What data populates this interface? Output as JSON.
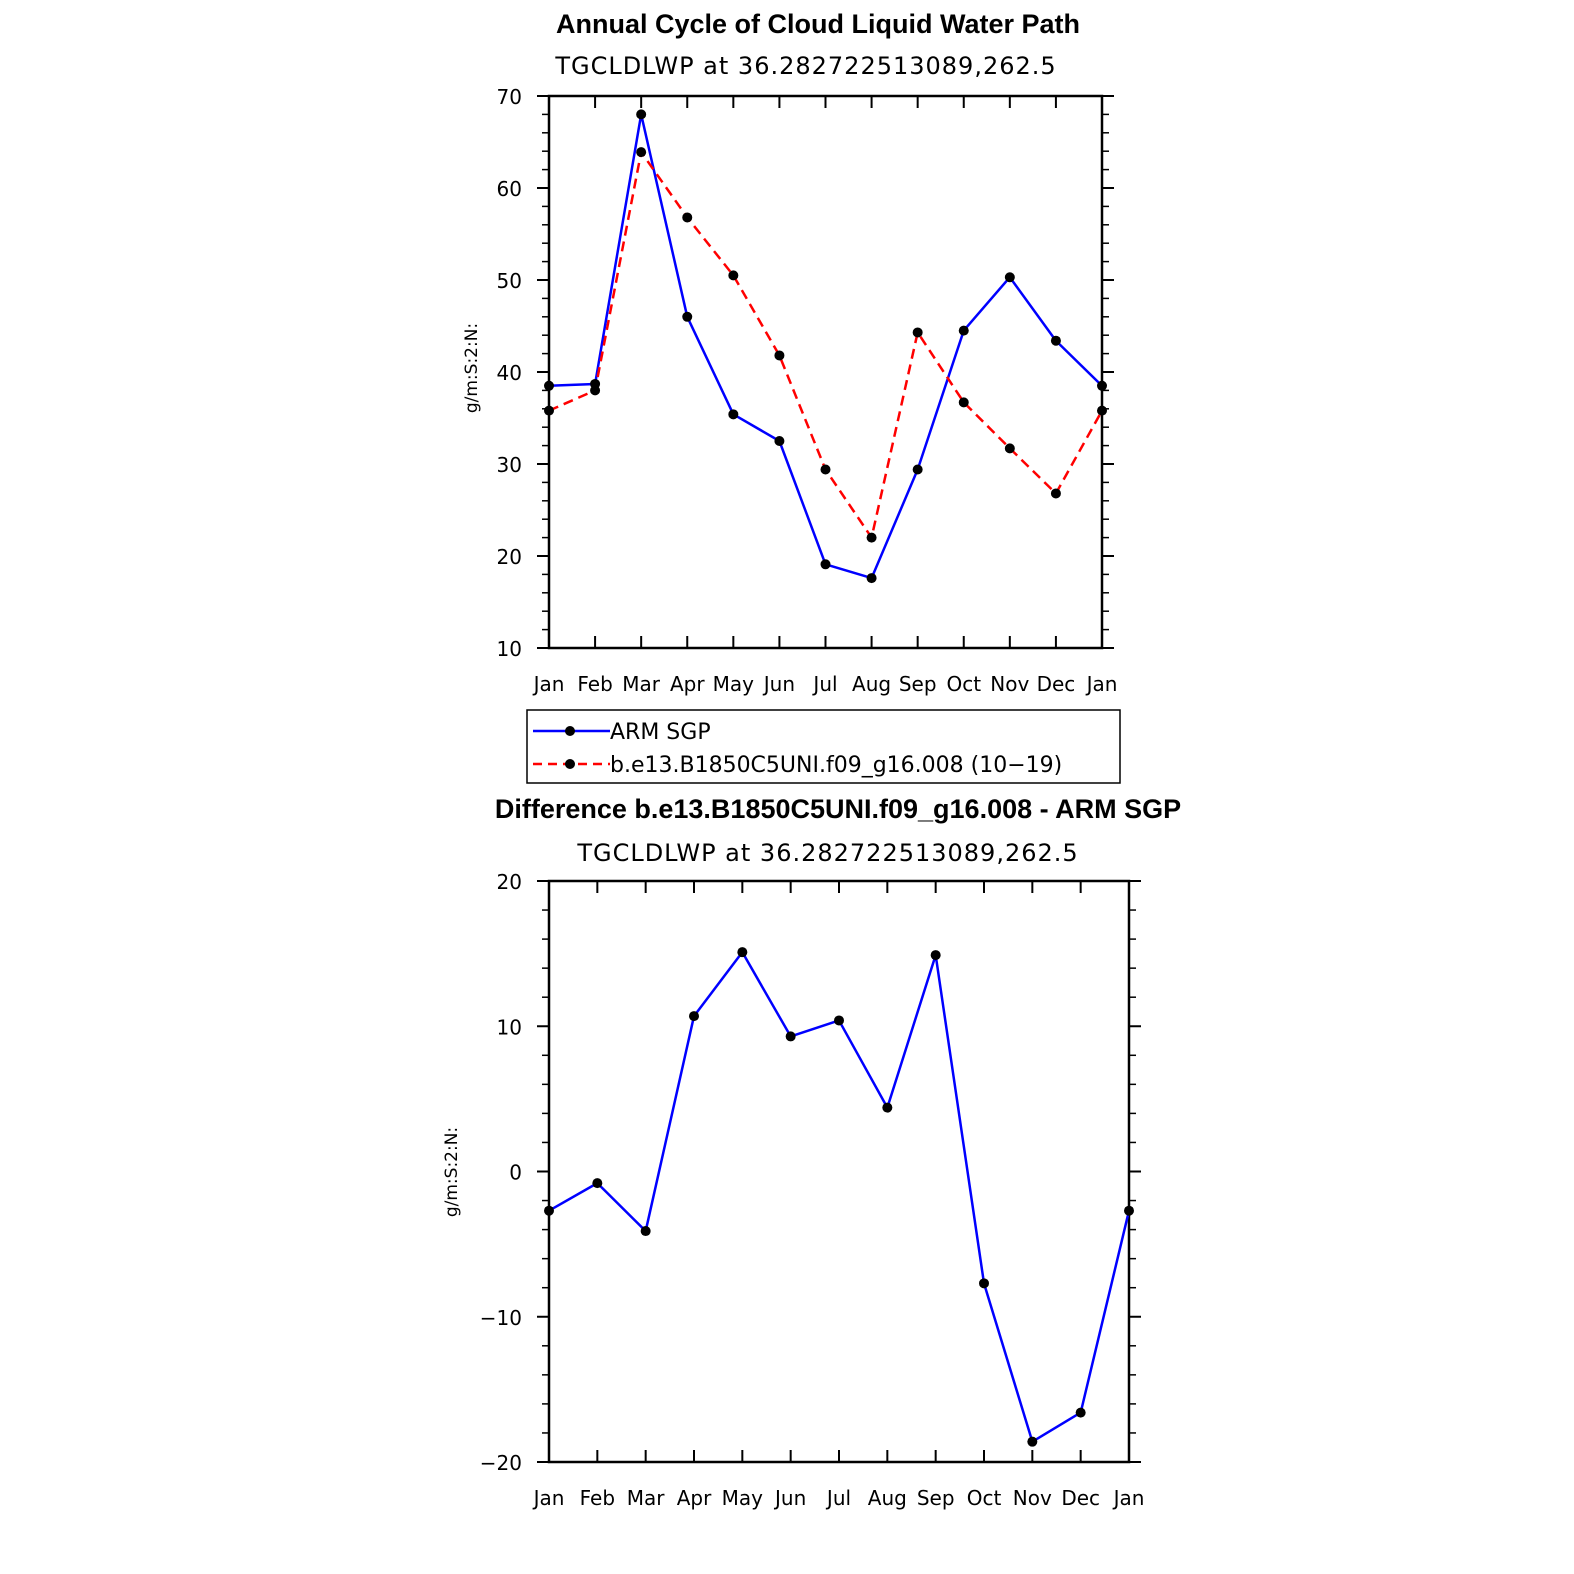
{
  "chart_data": [
    {
      "type": "line",
      "title": "Annual Cycle of Cloud Liquid Water Path",
      "subtitle": "TGCLDLWP  at  36.282722513089,262.5",
      "xlabel": "",
      "ylabel": "g/m:S:2:N:",
      "categories": [
        "Jan",
        "Feb",
        "Mar",
        "Apr",
        "May",
        "Jun",
        "Jul",
        "Aug",
        "Sep",
        "Oct",
        "Nov",
        "Dec",
        "Jan"
      ],
      "ylim": [
        10,
        70
      ],
      "yticks": [
        10,
        20,
        30,
        40,
        50,
        60,
        70
      ],
      "series": [
        {
          "name": "ARM SGP",
          "color": "#0000ff",
          "dash": "solid",
          "values": [
            38.5,
            38.7,
            68.0,
            46.0,
            35.4,
            32.5,
            19.1,
            17.6,
            29.4,
            44.5,
            50.3,
            43.4,
            38.5
          ]
        },
        {
          "name": "b.e13.B1850C5UNI.f09_g16.008 (10−19)",
          "color": "#ff0000",
          "dash": "dashed",
          "values": [
            35.8,
            38.0,
            63.9,
            56.8,
            50.5,
            41.8,
            29.4,
            22.0,
            44.3,
            36.7,
            31.7,
            26.8,
            35.8
          ]
        }
      ],
      "legend": "below"
    },
    {
      "type": "line",
      "title": "Difference b.e13.B1850C5UNI.f09_g16.008 - ARM SGP",
      "subtitle": "TGCLDLWP  at  36.282722513089,262.5",
      "xlabel": "",
      "ylabel": "g/m:S:2:N:",
      "categories": [
        "Jan",
        "Feb",
        "Mar",
        "Apr",
        "May",
        "Jun",
        "Jul",
        "Aug",
        "Sep",
        "Oct",
        "Nov",
        "Dec",
        "Jan"
      ],
      "ylim": [
        -20,
        20
      ],
      "yticks": [
        -20,
        -10,
        0,
        10,
        20
      ],
      "ytick_labels": [
        "−20",
        "−10",
        "0",
        "10",
        "20"
      ],
      "series": [
        {
          "name": "Difference",
          "color": "#0000ff",
          "dash": "solid",
          "values": [
            -2.7,
            -0.8,
            -4.1,
            10.7,
            15.1,
            9.3,
            10.4,
            4.4,
            14.9,
            -7.7,
            -18.6,
            -16.6,
            -2.7
          ]
        }
      ]
    }
  ]
}
